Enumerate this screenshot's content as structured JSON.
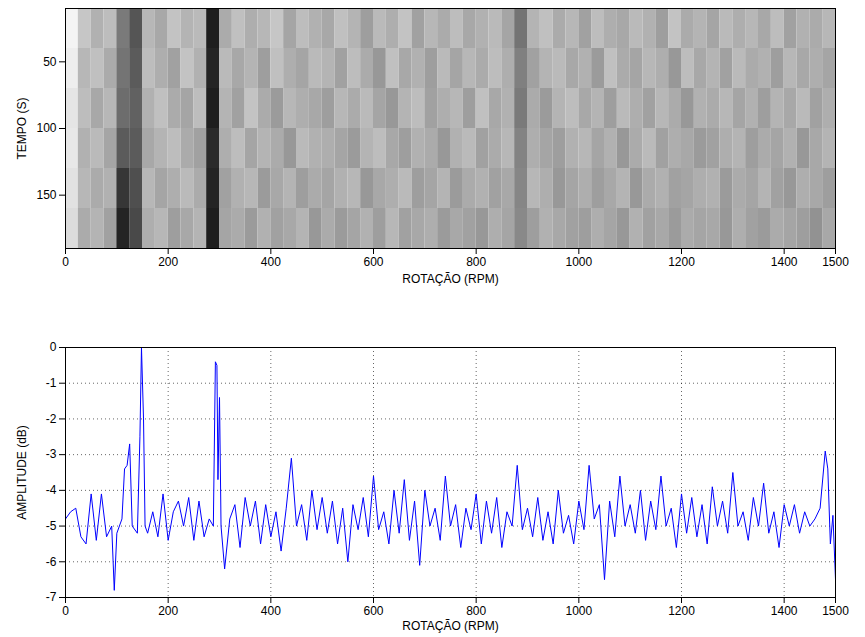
{
  "chart_data": [
    {
      "type": "heatmap",
      "x_label": "ROTAÇÃO (RPM)",
      "y_label": "TEMPO (S)",
      "xlim": [
        0,
        1500
      ],
      "ylim": [
        10,
        190
      ],
      "xticks": [
        0,
        200,
        400,
        600,
        800,
        1000,
        1200,
        1400,
        1500
      ],
      "yticks": [
        50,
        100,
        150
      ],
      "grid": false,
      "heatmap": {
        "x": [
          12.5,
          37.5,
          62.5,
          87.5,
          112.5,
          137.5,
          162.5,
          187.5,
          212.5,
          237.5,
          262.5,
          287.5,
          312.5,
          337.5,
          362.5,
          387.5,
          412.5,
          437.5,
          462.5,
          487.5,
          512.5,
          537.5,
          562.5,
          587.5,
          612.5,
          637.5,
          662.5,
          687.5,
          712.5,
          737.5,
          762.5,
          787.5,
          812.5,
          837.5,
          862.5,
          887.5,
          912.5,
          937.5,
          962.5,
          987.5,
          1012.5,
          1037.5,
          1062.5,
          1087.5,
          1112.5,
          1137.5,
          1162.5,
          1187.5,
          1212.5,
          1237.5,
          1262.5,
          1287.5,
          1312.5,
          1337.5,
          1362.5,
          1387.5,
          1412.5,
          1437.5,
          1462.5,
          1487.5
        ],
        "y": [
          25,
          55,
          85,
          115,
          145,
          175
        ],
        "values": [
          [
            0.2,
            0.35,
            0.42,
            0.38,
            0.6,
            0.72,
            0.4,
            0.45,
            0.36,
            0.41,
            0.39,
            0.9,
            0.44,
            0.37,
            0.43,
            0.4,
            0.35,
            0.46,
            0.38,
            0.42,
            0.45,
            0.37,
            0.41,
            0.48,
            0.39,
            0.43,
            0.36,
            0.47,
            0.4,
            0.44,
            0.38,
            0.45,
            0.42,
            0.39,
            0.46,
            0.62,
            0.41,
            0.37,
            0.44,
            0.4,
            0.47,
            0.38,
            0.43,
            0.45,
            0.39,
            0.42,
            0.48,
            0.36,
            0.44,
            0.41,
            0.46,
            0.39,
            0.43,
            0.4,
            0.45,
            0.38,
            0.47,
            0.42,
            0.44,
            0.4
          ],
          [
            0.22,
            0.4,
            0.37,
            0.44,
            0.62,
            0.7,
            0.38,
            0.43,
            0.47,
            0.36,
            0.42,
            0.88,
            0.39,
            0.45,
            0.41,
            0.48,
            0.37,
            0.43,
            0.46,
            0.39,
            0.41,
            0.47,
            0.38,
            0.44,
            0.5,
            0.37,
            0.45,
            0.42,
            0.48,
            0.39,
            0.46,
            0.4,
            0.44,
            0.38,
            0.43,
            0.58,
            0.47,
            0.41,
            0.39,
            0.45,
            0.42,
            0.49,
            0.37,
            0.44,
            0.46,
            0.4,
            0.43,
            0.5,
            0.38,
            0.45,
            0.41,
            0.47,
            0.39,
            0.44,
            0.42,
            0.48,
            0.4,
            0.45,
            0.43,
            0.46
          ],
          [
            0.25,
            0.38,
            0.45,
            0.4,
            0.64,
            0.68,
            0.42,
            0.37,
            0.44,
            0.46,
            0.38,
            0.9,
            0.41,
            0.47,
            0.36,
            0.44,
            0.49,
            0.4,
            0.43,
            0.45,
            0.48,
            0.4,
            0.44,
            0.39,
            0.46,
            0.5,
            0.41,
            0.38,
            0.47,
            0.43,
            0.4,
            0.48,
            0.37,
            0.45,
            0.42,
            0.6,
            0.44,
            0.49,
            0.41,
            0.38,
            0.45,
            0.41,
            0.48,
            0.39,
            0.43,
            0.47,
            0.4,
            0.44,
            0.5,
            0.42,
            0.44,
            0.4,
            0.46,
            0.42,
            0.48,
            0.41,
            0.45,
            0.39,
            0.47,
            0.43
          ],
          [
            0.24,
            0.42,
            0.39,
            0.46,
            0.7,
            0.7,
            0.45,
            0.41,
            0.38,
            0.44,
            0.47,
            0.86,
            0.43,
            0.38,
            0.46,
            0.41,
            0.44,
            0.5,
            0.39,
            0.42,
            0.43,
            0.46,
            0.49,
            0.41,
            0.38,
            0.45,
            0.48,
            0.42,
            0.44,
            0.5,
            0.42,
            0.39,
            0.47,
            0.44,
            0.4,
            0.57,
            0.43,
            0.46,
            0.48,
            0.42,
            0.4,
            0.46,
            0.42,
            0.5,
            0.44,
            0.39,
            0.47,
            0.43,
            0.45,
            0.49,
            0.47,
            0.43,
            0.41,
            0.48,
            0.44,
            0.46,
            0.42,
            0.5,
            0.45,
            0.41
          ],
          [
            0.26,
            0.4,
            0.44,
            0.42,
            0.82,
            0.74,
            0.4,
            0.46,
            0.43,
            0.39,
            0.44,
            0.88,
            0.47,
            0.42,
            0.4,
            0.49,
            0.45,
            0.41,
            0.48,
            0.44,
            0.46,
            0.42,
            0.4,
            0.5,
            0.45,
            0.43,
            0.39,
            0.48,
            0.46,
            0.41,
            0.49,
            0.44,
            0.42,
            0.47,
            0.45,
            0.56,
            0.4,
            0.43,
            0.5,
            0.46,
            0.43,
            0.48,
            0.45,
            0.41,
            0.5,
            0.44,
            0.42,
            0.47,
            0.46,
            0.43,
            0.42,
            0.49,
            0.44,
            0.46,
            0.41,
            0.47,
            0.5,
            0.43,
            0.45,
            0.48
          ],
          [
            0.28,
            0.44,
            0.41,
            0.47,
            0.88,
            0.76,
            0.43,
            0.4,
            0.48,
            0.45,
            0.41,
            0.9,
            0.46,
            0.44,
            0.49,
            0.42,
            0.47,
            0.45,
            0.41,
            0.5,
            0.44,
            0.49,
            0.46,
            0.42,
            0.48,
            0.4,
            0.47,
            0.45,
            0.43,
            0.49,
            0.45,
            0.47,
            0.5,
            0.43,
            0.46,
            0.55,
            0.48,
            0.42,
            0.45,
            0.47,
            0.48,
            0.43,
            0.46,
            0.5,
            0.42,
            0.47,
            0.45,
            0.49,
            0.44,
            0.46,
            0.45,
            0.5,
            0.43,
            0.47,
            0.49,
            0.44,
            0.46,
            0.48,
            0.52,
            0.45
          ]
        ]
      }
    },
    {
      "type": "line",
      "x_label": "ROTAÇÃO (RPM)",
      "y_label": "AMPLITUDE (dB)",
      "xlim": [
        0,
        1500
      ],
      "ylim": [
        -7,
        0
      ],
      "xticks": [
        0,
        200,
        400,
        600,
        800,
        1000,
        1200,
        1400,
        1500
      ],
      "yticks": [
        -7,
        -6,
        -5,
        -4,
        -3,
        -2,
        -1,
        0
      ],
      "grid": true,
      "color": "#0000ff",
      "line_style": "solid",
      "x": [
        0,
        10,
        20,
        30,
        40,
        50,
        60,
        70,
        80,
        90,
        95,
        100,
        110,
        115,
        120,
        125,
        130,
        140,
        145,
        148,
        152,
        155,
        160,
        170,
        180,
        190,
        200,
        210,
        220,
        230,
        240,
        250,
        260,
        270,
        280,
        288,
        292,
        295,
        297,
        300,
        303,
        310,
        320,
        330,
        340,
        350,
        360,
        370,
        380,
        390,
        400,
        410,
        420,
        430,
        440,
        450,
        460,
        470,
        480,
        490,
        500,
        510,
        520,
        530,
        540,
        550,
        560,
        570,
        580,
        590,
        600,
        610,
        620,
        630,
        640,
        650,
        660,
        670,
        680,
        690,
        700,
        710,
        720,
        730,
        740,
        750,
        760,
        770,
        780,
        790,
        800,
        810,
        820,
        830,
        840,
        850,
        860,
        870,
        880,
        890,
        900,
        910,
        920,
        930,
        940,
        950,
        960,
        970,
        980,
        990,
        1000,
        1010,
        1020,
        1030,
        1040,
        1050,
        1060,
        1070,
        1080,
        1090,
        1100,
        1110,
        1120,
        1130,
        1140,
        1150,
        1160,
        1170,
        1180,
        1190,
        1200,
        1210,
        1220,
        1230,
        1240,
        1250,
        1260,
        1270,
        1280,
        1290,
        1300,
        1310,
        1320,
        1330,
        1340,
        1350,
        1360,
        1370,
        1380,
        1390,
        1400,
        1410,
        1420,
        1430,
        1440,
        1450,
        1460,
        1470,
        1480,
        1485,
        1490,
        1495,
        1500
      ],
      "values": [
        -4.8,
        -4.6,
        -4.5,
        -5.3,
        -5.5,
        -4.1,
        -5.4,
        -4.1,
        -5.3,
        -5.0,
        -6.8,
        -5.2,
        -4.8,
        -3.4,
        -3.3,
        -2.7,
        -5.0,
        -5.2,
        -2.5,
        0,
        -2.0,
        -5.0,
        -5.2,
        -4.6,
        -5.3,
        -4.1,
        -5.4,
        -4.6,
        -4.3,
        -5.0,
        -4.2,
        -5.4,
        -4.3,
        -5.3,
        -4.8,
        -5.0,
        -0.4,
        -0.5,
        -3.7,
        -1.4,
        -5.0,
        -6.2,
        -4.8,
        -4.4,
        -5.6,
        -4.2,
        -5.0,
        -4.3,
        -5.5,
        -4.4,
        -5.3,
        -4.6,
        -5.7,
        -4.5,
        -3.1,
        -5.0,
        -4.4,
        -5.4,
        -4.0,
        -5.1,
        -4.2,
        -5.2,
        -4.3,
        -5.5,
        -4.5,
        -6.0,
        -4.4,
        -5.1,
        -4.2,
        -5.3,
        -3.6,
        -5.1,
        -4.6,
        -5.5,
        -4.0,
        -5.2,
        -3.7,
        -5.4,
        -4.3,
        -6.1,
        -4.0,
        -5.0,
        -4.5,
        -5.4,
        -3.6,
        -5.0,
        -4.4,
        -5.6,
        -4.5,
        -5.1,
        -4.1,
        -5.5,
        -4.3,
        -5.2,
        -4.2,
        -5.6,
        -4.6,
        -5.0,
        -3.3,
        -5.1,
        -4.5,
        -5.3,
        -4.2,
        -5.4,
        -4.6,
        -5.5,
        -4.0,
        -5.2,
        -4.7,
        -5.5,
        -4.3,
        -5.1,
        -3.3,
        -4.8,
        -4.4,
        -6.5,
        -4.3,
        -5.3,
        -3.6,
        -5.0,
        -4.4,
        -5.2,
        -4.0,
        -5.4,
        -4.3,
        -5.1,
        -3.6,
        -5.0,
        -4.5,
        -5.6,
        -4.1,
        -5.2,
        -4.2,
        -5.3,
        -4.4,
        -5.5,
        -3.9,
        -5.0,
        -4.3,
        -5.2,
        -3.5,
        -5.0,
        -4.6,
        -5.4,
        -4.2,
        -5.0,
        -3.8,
        -5.2,
        -4.6,
        -5.6,
        -4.4,
        -5.0,
        -4.4,
        -5.2,
        -4.6,
        -5.0,
        -4.8,
        -4.5,
        -2.9,
        -3.4,
        -5.5,
        -4.7,
        -6.5
      ]
    }
  ]
}
